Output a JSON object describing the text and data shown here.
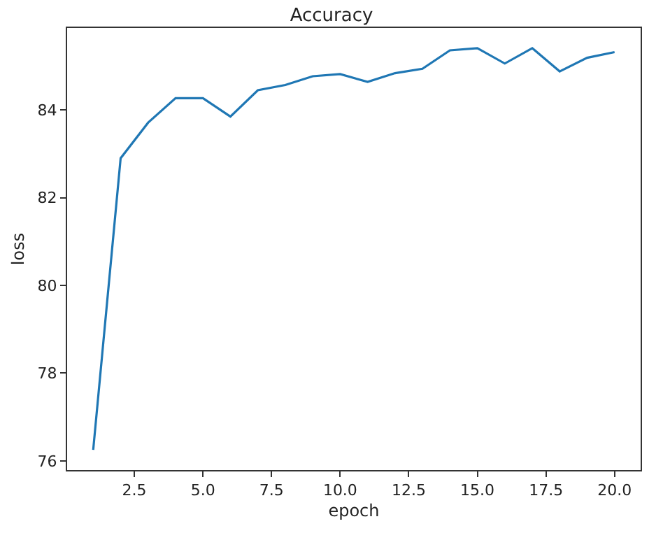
{
  "chart_data": {
    "type": "line",
    "title": "Accuracy",
    "xlabel": "epoch",
    "ylabel": "loss",
    "x": [
      1,
      2,
      3,
      4,
      5,
      6,
      7,
      8,
      9,
      10,
      11,
      12,
      13,
      14,
      15,
      16,
      17,
      18,
      19,
      20
    ],
    "series": [
      {
        "color": "#1f77b4",
        "values": [
          76.25,
          82.9,
          83.71,
          84.27,
          84.27,
          83.85,
          84.45,
          84.57,
          84.77,
          84.82,
          84.64,
          84.84,
          84.94,
          85.36,
          85.41,
          85.06,
          85.41,
          84.88,
          85.19,
          85.32
        ]
      }
    ],
    "xlim": [
      0.05,
      20.95
    ],
    "ylim": [
      75.79,
      85.87
    ],
    "xticks": [
      {
        "value": 2.5,
        "label": "2.5"
      },
      {
        "value": 5,
        "label": "5.0"
      },
      {
        "value": 7.5,
        "label": "7.5"
      },
      {
        "value": 10,
        "label": "10.0"
      },
      {
        "value": 12.5,
        "label": "12.5"
      },
      {
        "value": 15,
        "label": "15.0"
      },
      {
        "value": 17.5,
        "label": "17.5"
      },
      {
        "value": 20,
        "label": "20.0"
      }
    ],
    "yticks": [
      76,
      78,
      80,
      82,
      84
    ],
    "marker": "none",
    "line_style": "solid"
  }
}
